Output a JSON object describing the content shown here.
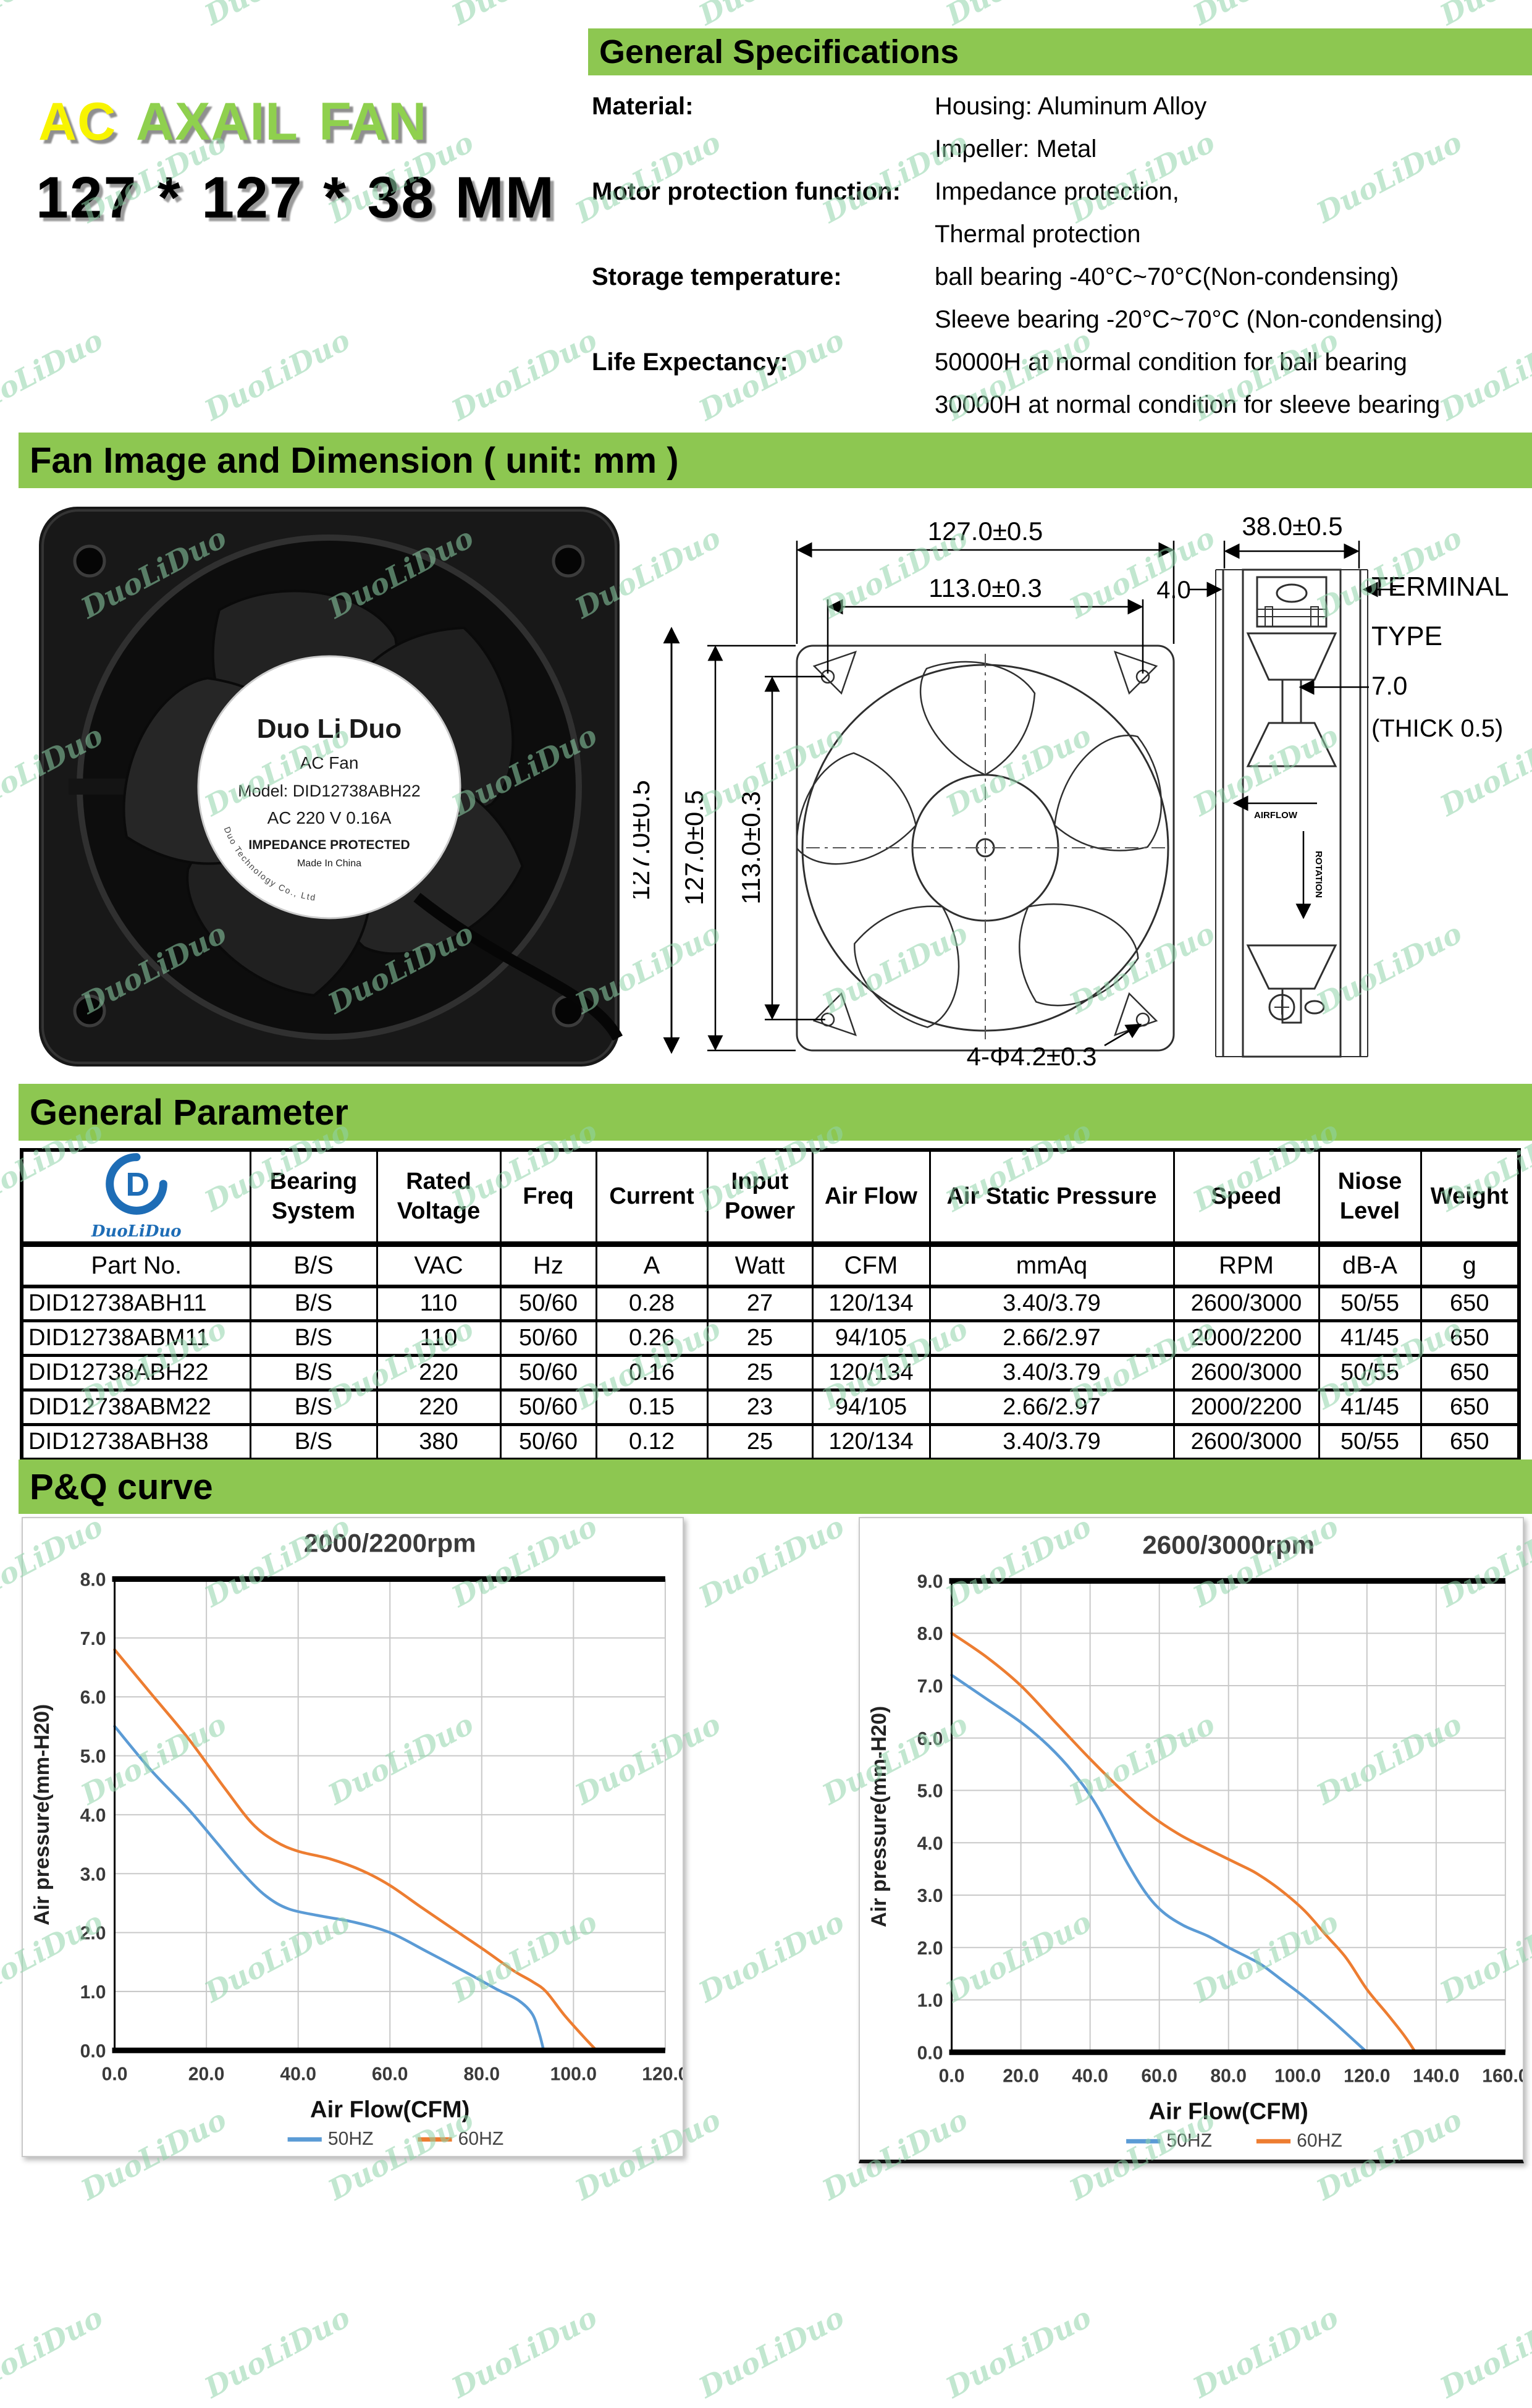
{
  "watermark": {
    "text": "DuoLiDuo"
  },
  "theme": {
    "banner_green": "#8dc751",
    "chart_blue": "#5b9bd5",
    "chart_orange": "#ed7d31",
    "logo_blue": "#1e6db6",
    "title_yellow": "#f8f400",
    "title_green": "#8fd04e"
  },
  "header": {
    "product_title": {
      "part1": "AC",
      "part2": "AXAIL FAN"
    },
    "size_line": "127 * 127 * 38 MM",
    "section_title": "General Specifications",
    "specs": [
      {
        "label": "Material:",
        "value": "Housing: Aluminum Alloy"
      },
      {
        "label": "",
        "value": "Impeller: Metal"
      },
      {
        "label": "Motor protection function:",
        "value": "Impedance protection,"
      },
      {
        "label": "",
        "value": "Thermal protection"
      },
      {
        "label": "Storage temperature:",
        "value": "ball bearing -40°C~70°C(Non-condensing)"
      },
      {
        "label": "",
        "value": "Sleeve bearing -20°C~70°C (Non-condensing)"
      },
      {
        "label": "Life Expectancy:",
        "value": "50000H at normal condition for ball bearing"
      },
      {
        "label": "",
        "value": "30000H at normal condition for sleeve bearing"
      }
    ]
  },
  "dimension_section": {
    "title": "Fan Image and Dimension ( unit: mm )",
    "fan_label": {
      "brand": "Duo Li Duo",
      "line2": "AC Fan",
      "line3": "Model: DID12738ABH22",
      "line4": "AC 220 V  0.16A",
      "line5": "IMPEDANCE PROTECTED",
      "line6": "Made In China",
      "arc": "Shenzhen Duo Li Duo Technology Co., Ltd"
    },
    "photo_height_dim": "127.0±0.5",
    "front_view": {
      "width_dim": "127.0±0.5",
      "hole_pitch_dim": "113.0±0.3",
      "height_dim": "127.0±0.5",
      "height_pitch_dim": "113.0±0.3",
      "hole_note": "4-Φ4.2±0.3"
    },
    "side_view": {
      "depth_dim": "38.0±0.5",
      "offset_dim": "4.0",
      "terminal_label_1": "TERMINAL",
      "terminal_label_2": "TYPE",
      "terminal_dim": "7.0",
      "thickness_note": "(THICK 0.5)",
      "airflow_label": "AIRFLOW",
      "rotation_label": "ROTATION"
    }
  },
  "parameter_section": {
    "title": "General Parameter",
    "logo_text": "DuoLiDuo",
    "columns": [
      "Bearing System",
      "Rated Voltage",
      "Freq",
      "Current",
      "Input Power",
      "Air Flow",
      "Air Static Pressure",
      "Speed",
      "Niose Level",
      "Weight"
    ],
    "units_row": [
      "Part No.",
      "B/S",
      "VAC",
      "Hz",
      "A",
      "Watt",
      "CFM",
      "mmAq",
      "RPM",
      "dB-A",
      "g"
    ],
    "rows": [
      [
        "DID12738ABH11",
        "B/S",
        "110",
        "50/60",
        "0.28",
        "27",
        "120/134",
        "3.40/3.79",
        "2600/3000",
        "50/55",
        "650"
      ],
      [
        "DID12738ABM11",
        "B/S",
        "110",
        "50/60",
        "0.26",
        "25",
        "94/105",
        "2.66/2.97",
        "2000/2200",
        "41/45",
        "650"
      ],
      [
        "DID12738ABH22",
        "B/S",
        "220",
        "50/60",
        "0.16",
        "25",
        "120/134",
        "3.40/3.79",
        "2600/3000",
        "50/55",
        "650"
      ],
      [
        "DID12738ABM22",
        "B/S",
        "220",
        "50/60",
        "0.15",
        "23",
        "94/105",
        "2.66/2.97",
        "2000/2200",
        "41/45",
        "650"
      ],
      [
        "DID12738ABH38",
        "B/S",
        "380",
        "50/60",
        "0.12",
        "25",
        "120/134",
        "3.40/3.79",
        "2600/3000",
        "50/55",
        "650"
      ]
    ]
  },
  "pq_title": "P&Q curve",
  "chart_data": [
    {
      "type": "line",
      "title": "2000/2200rpm",
      "xlabel": "Air Flow(CFM)",
      "ylabel": "Air pressure(mm-H20)",
      "xlim": [
        0,
        120
      ],
      "ylim": [
        0,
        8
      ],
      "x_tick_step": 20,
      "y_tick_step": 1,
      "grid": true,
      "legend_position": "bottom",
      "series": [
        {
          "name": "50HZ",
          "color": "#5b9bd5",
          "points": [
            [
              0,
              5.5
            ],
            [
              8,
              4.75
            ],
            [
              16,
              4.1
            ],
            [
              22,
              3.55
            ],
            [
              28,
              3.0
            ],
            [
              33,
              2.62
            ],
            [
              38,
              2.4
            ],
            [
              45,
              2.28
            ],
            [
              52,
              2.18
            ],
            [
              60,
              2.0
            ],
            [
              68,
              1.68
            ],
            [
              76,
              1.35
            ],
            [
              83,
              1.05
            ],
            [
              88,
              0.85
            ],
            [
              91,
              0.62
            ],
            [
              92.5,
              0.3
            ],
            [
              93.5,
              0
            ]
          ]
        },
        {
          "name": "60HZ",
          "color": "#ed7d31",
          "points": [
            [
              0,
              6.8
            ],
            [
              8,
              6.05
            ],
            [
              16,
              5.3
            ],
            [
              24,
              4.45
            ],
            [
              30,
              3.85
            ],
            [
              35,
              3.55
            ],
            [
              40,
              3.38
            ],
            [
              47,
              3.25
            ],
            [
              54,
              3.05
            ],
            [
              60,
              2.8
            ],
            [
              67,
              2.42
            ],
            [
              74,
              2.05
            ],
            [
              81,
              1.68
            ],
            [
              87,
              1.35
            ],
            [
              91,
              1.17
            ],
            [
              94,
              1.0
            ],
            [
              98,
              0.6
            ],
            [
              102,
              0.25
            ],
            [
              105,
              0
            ]
          ]
        }
      ]
    },
    {
      "type": "line",
      "title": "2600/3000rpm",
      "xlabel": "Air Flow(CFM)",
      "ylabel": "Air pressure(mm-H20)",
      "xlim": [
        0,
        160
      ],
      "ylim": [
        0,
        9
      ],
      "x_tick_step": 20,
      "y_tick_step": 1,
      "grid": true,
      "legend_position": "bottom",
      "series": [
        {
          "name": "50HZ",
          "color": "#5b9bd5",
          "points": [
            [
              0,
              7.2
            ],
            [
              10,
              6.75
            ],
            [
              20,
              6.3
            ],
            [
              28,
              5.85
            ],
            [
              35,
              5.35
            ],
            [
              42,
              4.7
            ],
            [
              50,
              3.7
            ],
            [
              56,
              3.05
            ],
            [
              61,
              2.68
            ],
            [
              67,
              2.42
            ],
            [
              74,
              2.22
            ],
            [
              80,
              2.0
            ],
            [
              86,
              1.8
            ],
            [
              90,
              1.65
            ],
            [
              96,
              1.35
            ],
            [
              102,
              1.05
            ],
            [
              110,
              0.6
            ],
            [
              120,
              0
            ]
          ]
        },
        {
          "name": "60HZ",
          "color": "#ed7d31",
          "points": [
            [
              0,
              8.0
            ],
            [
              10,
              7.55
            ],
            [
              20,
              7.0
            ],
            [
              30,
              6.3
            ],
            [
              40,
              5.6
            ],
            [
              50,
              4.95
            ],
            [
              58,
              4.5
            ],
            [
              66,
              4.15
            ],
            [
              74,
              3.88
            ],
            [
              82,
              3.62
            ],
            [
              88,
              3.42
            ],
            [
              95,
              3.1
            ],
            [
              102,
              2.7
            ],
            [
              108,
              2.25
            ],
            [
              114,
              1.8
            ],
            [
              120,
              1.2
            ],
            [
              126,
              0.72
            ],
            [
              131,
              0.3
            ],
            [
              134,
              0
            ]
          ]
        }
      ]
    }
  ]
}
